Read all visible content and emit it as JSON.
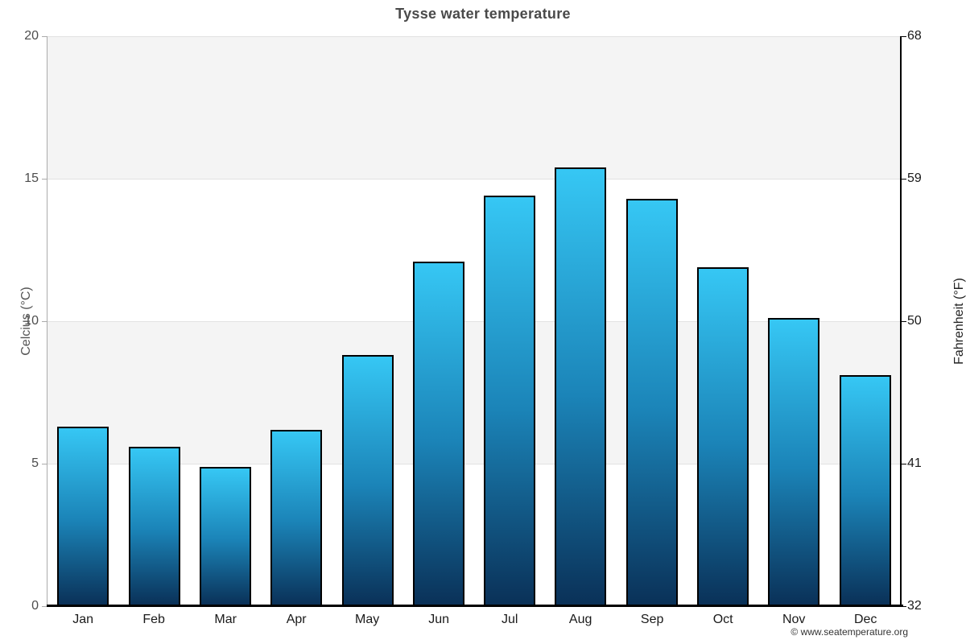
{
  "title": "Tysse water temperature",
  "credit": "© www.seatemperature.org",
  "colors": {
    "bar_gradient_top": "#36c7f4",
    "bar_gradient_mid": "#1b84b8",
    "bar_gradient_bottom": "#0a3158",
    "bar_border": "#000000",
    "band_gray": "#f4f4f4",
    "gridline": "#e2e2e2",
    "title_text": "#4a4a4a",
    "axis_left_line": "#ababab",
    "axis_right_line": "#000000",
    "axis_bottom_line": "#000000"
  },
  "chart_data": {
    "type": "bar",
    "title": "Tysse water temperature",
    "categories": [
      "Jan",
      "Feb",
      "Mar",
      "Apr",
      "May",
      "Jun",
      "Jul",
      "Aug",
      "Sep",
      "Oct",
      "Nov",
      "Dec"
    ],
    "values": [
      6.3,
      5.6,
      4.9,
      6.2,
      8.8,
      12.1,
      14.4,
      15.4,
      14.3,
      11.9,
      10.1,
      8.1
    ],
    "series_name": "Water temperature",
    "xlabel": "",
    "ylabel_left": "Celcius (°C)",
    "ylabel_right": "Fahrenheit (°F)",
    "ylim_left": [
      0,
      20
    ],
    "ylim_right": [
      32,
      68
    ],
    "yticks_left": [
      0,
      5,
      10,
      15,
      20
    ],
    "yticks_right": [
      32,
      41,
      50,
      59,
      68
    ],
    "grid": "horizontal-bands",
    "plot_bands_gray": [
      {
        "from": 5,
        "to": 10
      },
      {
        "from": 15,
        "to": 20
      }
    ],
    "legend": "none"
  }
}
